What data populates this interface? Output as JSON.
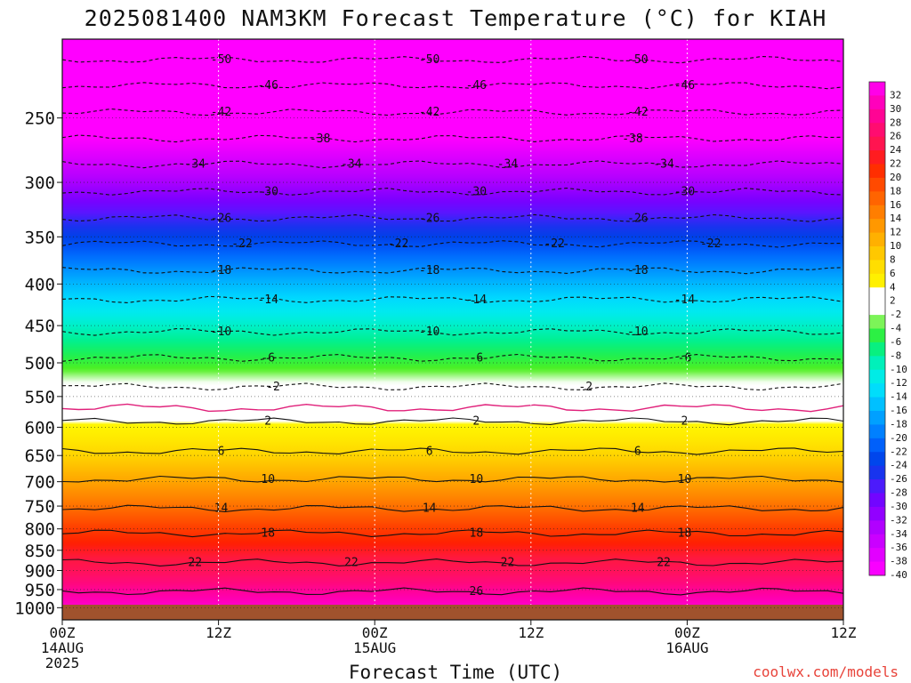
{
  "title": "2025081400 NAM3KM Forecast Temperature (°C) for KIAH",
  "credit": "coolwx.com/models",
  "colors": {
    "ground": "#a0522d",
    "freezing_line": "#e0207a"
  },
  "chart_data": {
    "type": "heatmap",
    "title": "2025081400 NAM3KM Forecast Temperature (°C) for KIAH",
    "xlabel": "Forecast Time (UTC)",
    "ylabel": "",
    "x_range_hours": [
      0,
      60
    ],
    "y_axis": {
      "scale": "log",
      "range": [
        200,
        1035
      ],
      "inverted": true
    },
    "y_ticks": [
      250,
      300,
      350,
      400,
      450,
      500,
      550,
      600,
      650,
      700,
      750,
      800,
      850,
      900,
      950,
      1000
    ],
    "x_ticks": [
      {
        "hour": 0,
        "lines": [
          "00Z",
          "14AUG",
          "2025"
        ]
      },
      {
        "hour": 12,
        "lines": [
          "12Z"
        ]
      },
      {
        "hour": 24,
        "lines": [
          "00Z",
          "15AUG"
        ]
      },
      {
        "hour": 36,
        "lines": [
          "12Z"
        ]
      },
      {
        "hour": 48,
        "lines": [
          "00Z",
          "16AUG"
        ]
      },
      {
        "hour": 60,
        "lines": [
          "12Z"
        ]
      }
    ],
    "grid": true,
    "colorbar": {
      "placement": "right",
      "labels": [
        "32",
        "30",
        "28",
        "26",
        "24",
        "22",
        "20",
        "18",
        "16",
        "14",
        "12",
        "10",
        "8",
        "6",
        "4",
        "2",
        "-2",
        "-4",
        "-6",
        "-8",
        "-10",
        "-12",
        "-14",
        "-16",
        "-18",
        "-20",
        "-22",
        "-24",
        "-26",
        "-28",
        "-30",
        "-32",
        "-34",
        "-36",
        "-38",
        "-40"
      ]
    },
    "temperature_profile": {
      "pressure_hpa": [
        200,
        250,
        300,
        350,
        400,
        450,
        500,
        550,
        600,
        650,
        700,
        750,
        800,
        850,
        900,
        950,
        1000
      ],
      "temperature_c": [
        -54,
        -43,
        -33,
        -24,
        -16,
        -10,
        -5,
        0,
        2.5,
        6,
        10,
        14,
        18,
        21,
        23.5,
        27,
        30
      ]
    },
    "contours": [
      {
        "value": -50,
        "dashed": true,
        "pressure_hpa": 212,
        "labels": [
          "-50",
          "-50",
          "-50"
        ]
      },
      {
        "value": -46,
        "dashed": true,
        "pressure_hpa": 228,
        "labels": [
          "-46",
          "-46",
          "-46"
        ]
      },
      {
        "value": -42,
        "dashed": true,
        "pressure_hpa": 246,
        "labels": [
          "-42",
          "-42",
          "-42"
        ]
      },
      {
        "value": -38,
        "dashed": true,
        "pressure_hpa": 265,
        "labels": [
          "-38",
          "-38"
        ]
      },
      {
        "value": -34,
        "dashed": true,
        "pressure_hpa": 285,
        "labels": [
          "-34",
          "-34",
          "-34",
          "-34"
        ]
      },
      {
        "value": -30,
        "dashed": true,
        "pressure_hpa": 308,
        "labels": [
          "-30",
          "-30",
          "-30"
        ]
      },
      {
        "value": -26,
        "dashed": true,
        "pressure_hpa": 332,
        "labels": [
          "-26",
          "-26",
          "-26"
        ]
      },
      {
        "value": -22,
        "dashed": true,
        "pressure_hpa": 357,
        "labels": [
          "-22",
          "-22",
          "-22",
          "-22"
        ]
      },
      {
        "value": -18,
        "dashed": true,
        "pressure_hpa": 385,
        "labels": [
          "-18",
          "-18",
          "-18"
        ]
      },
      {
        "value": -14,
        "dashed": true,
        "pressure_hpa": 418,
        "labels": [
          "-14",
          "-14",
          "-14"
        ]
      },
      {
        "value": -10,
        "dashed": true,
        "pressure_hpa": 458,
        "labels": [
          "-10",
          "-10",
          "-10"
        ]
      },
      {
        "value": -6,
        "dashed": true,
        "pressure_hpa": 493,
        "labels": [
          "-6",
          "-6",
          "-6"
        ]
      },
      {
        "value": -2,
        "dashed": true,
        "pressure_hpa": 535,
        "labels": [
          "-2",
          "-2"
        ]
      },
      {
        "value": 2,
        "dashed": false,
        "pressure_hpa": 590,
        "labels": [
          "2",
          "2",
          "2"
        ]
      },
      {
        "value": 6,
        "dashed": false,
        "pressure_hpa": 642,
        "labels": [
          "6",
          "6",
          "6"
        ]
      },
      {
        "value": 10,
        "dashed": false,
        "pressure_hpa": 695,
        "labels": [
          "10",
          "10",
          "10"
        ]
      },
      {
        "value": 14,
        "dashed": false,
        "pressure_hpa": 755,
        "labels": [
          "14",
          "14",
          "14"
        ]
      },
      {
        "value": 18,
        "dashed": false,
        "pressure_hpa": 810,
        "labels": [
          "18",
          "18",
          "18"
        ]
      },
      {
        "value": 22,
        "dashed": false,
        "pressure_hpa": 880,
        "labels": [
          "22",
          "22",
          "22",
          "22"
        ]
      },
      {
        "value": 26,
        "dashed": false,
        "pressure_hpa": 955,
        "labels": [
          "26"
        ]
      }
    ]
  }
}
